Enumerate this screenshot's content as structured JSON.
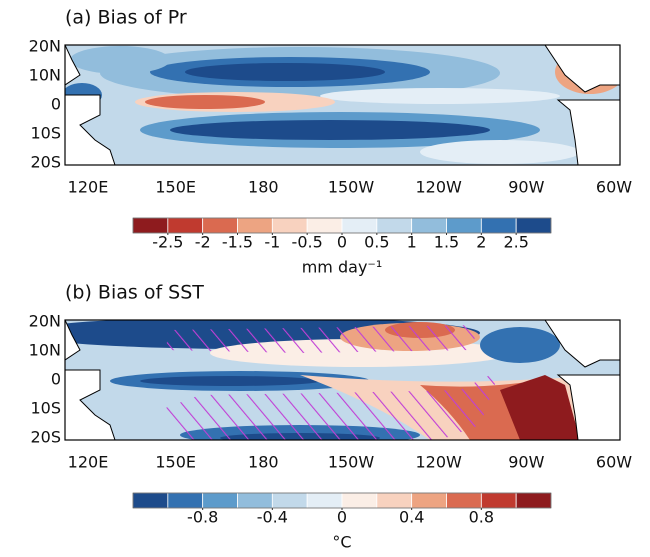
{
  "panels": [
    {
      "title": "(a) Bias of Pr",
      "lon_ticks": [
        "120E",
        "150E",
        "180",
        "150W",
        "120W",
        "90W",
        "60W"
      ],
      "lat_ticks": [
        "20N",
        "10N",
        "0",
        "10S",
        "20S"
      ],
      "colorbar": {
        "colors": [
          "#8e1b1e",
          "#c03a2f",
          "#da6a50",
          "#eda482",
          "#f8d2bf",
          "#fbeee6",
          "#e4eef6",
          "#c2d9ea",
          "#92bddc",
          "#5d9bcb",
          "#3371b1",
          "#1d4b8b"
        ],
        "lim": [
          -3,
          3
        ],
        "ticks": [
          -2.5,
          -2,
          -1.5,
          -1,
          -0.5,
          0,
          0.5,
          1,
          1.5,
          2,
          2.5
        ],
        "label": "mm day⁻¹"
      }
    },
    {
      "title": "(b) Bias of SST",
      "lon_ticks": [
        "120E",
        "150E",
        "180",
        "150W",
        "120W",
        "90W",
        "60W"
      ],
      "lat_ticks": [
        "20N",
        "10N",
        "0",
        "10S",
        "20S"
      ],
      "colorbar": {
        "colors": [
          "#1d4b8b",
          "#3371b1",
          "#5d9bcb",
          "#92bddc",
          "#c2d9ea",
          "#e4eef6",
          "#fbeee6",
          "#f8d2bf",
          "#eda482",
          "#da6a50",
          "#c03a2f",
          "#8e1b1e"
        ],
        "lim": [
          -1.2,
          1.2
        ],
        "ticks": [
          -0.8,
          -0.4,
          0,
          0.4,
          0.8
        ],
        "label": "°C"
      }
    }
  ]
}
